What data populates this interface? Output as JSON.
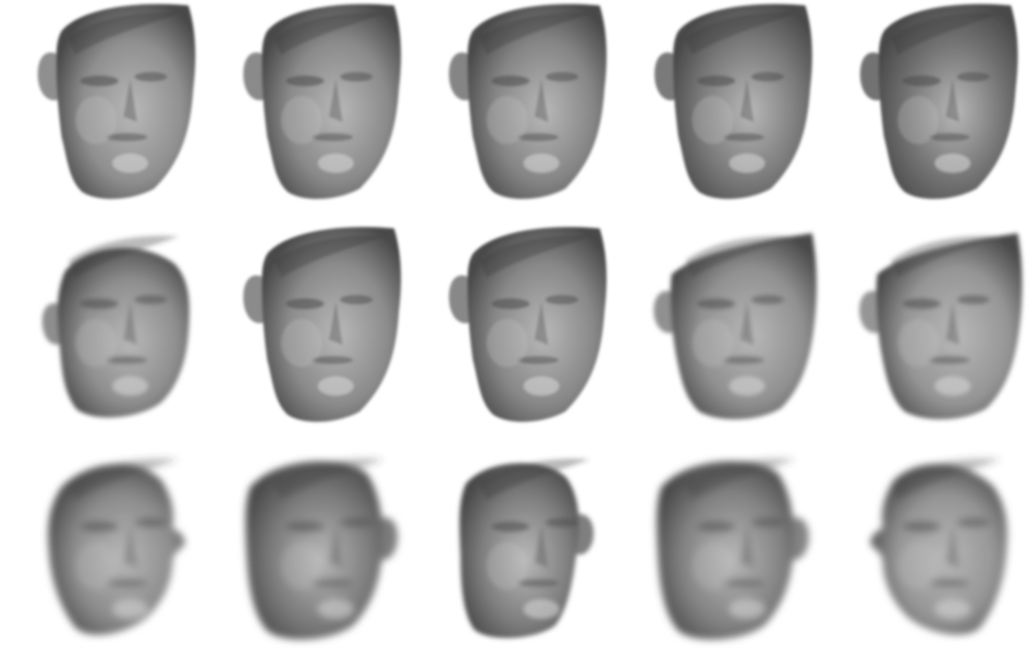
{
  "figure": {
    "rows": [
      {
        "faces": [
          {
            "view": "three-quarter-left",
            "shade": "#8f8f8f",
            "blur": "low"
          },
          {
            "view": "three-quarter-left",
            "shade": "#8a8a8a",
            "blur": "low"
          },
          {
            "view": "three-quarter-left",
            "shade": "#858585",
            "blur": "low"
          },
          {
            "view": "three-quarter-left",
            "shade": "#7a7a7a",
            "blur": "low"
          },
          {
            "view": "three-quarter-left",
            "shade": "#727272",
            "blur": "low"
          }
        ]
      },
      {
        "faces": [
          {
            "view": "three-quarter-left-tilted",
            "shade": "#8e8e8e",
            "blur": "medium"
          },
          {
            "view": "three-quarter-left",
            "shade": "#8b8b8b",
            "blur": "low"
          },
          {
            "view": "three-quarter-left",
            "shade": "#888888",
            "blur": "low"
          },
          {
            "view": "three-quarter-left-wide",
            "shade": "#909090",
            "blur": "medium"
          },
          {
            "view": "three-quarter-left-wide",
            "shade": "#959595",
            "blur": "medium"
          }
        ]
      },
      {
        "faces": [
          {
            "view": "profile-right",
            "shade": "#8c8c8c",
            "blur": "high"
          },
          {
            "view": "three-quarter-right",
            "shade": "#7c7c7c",
            "blur": "high"
          },
          {
            "view": "frontal",
            "shade": "#7f7f7f",
            "blur": "medium"
          },
          {
            "view": "three-quarter-right",
            "shade": "#838383",
            "blur": "high"
          },
          {
            "view": "profile-left",
            "shade": "#959595",
            "blur": "high"
          }
        ]
      }
    ]
  }
}
